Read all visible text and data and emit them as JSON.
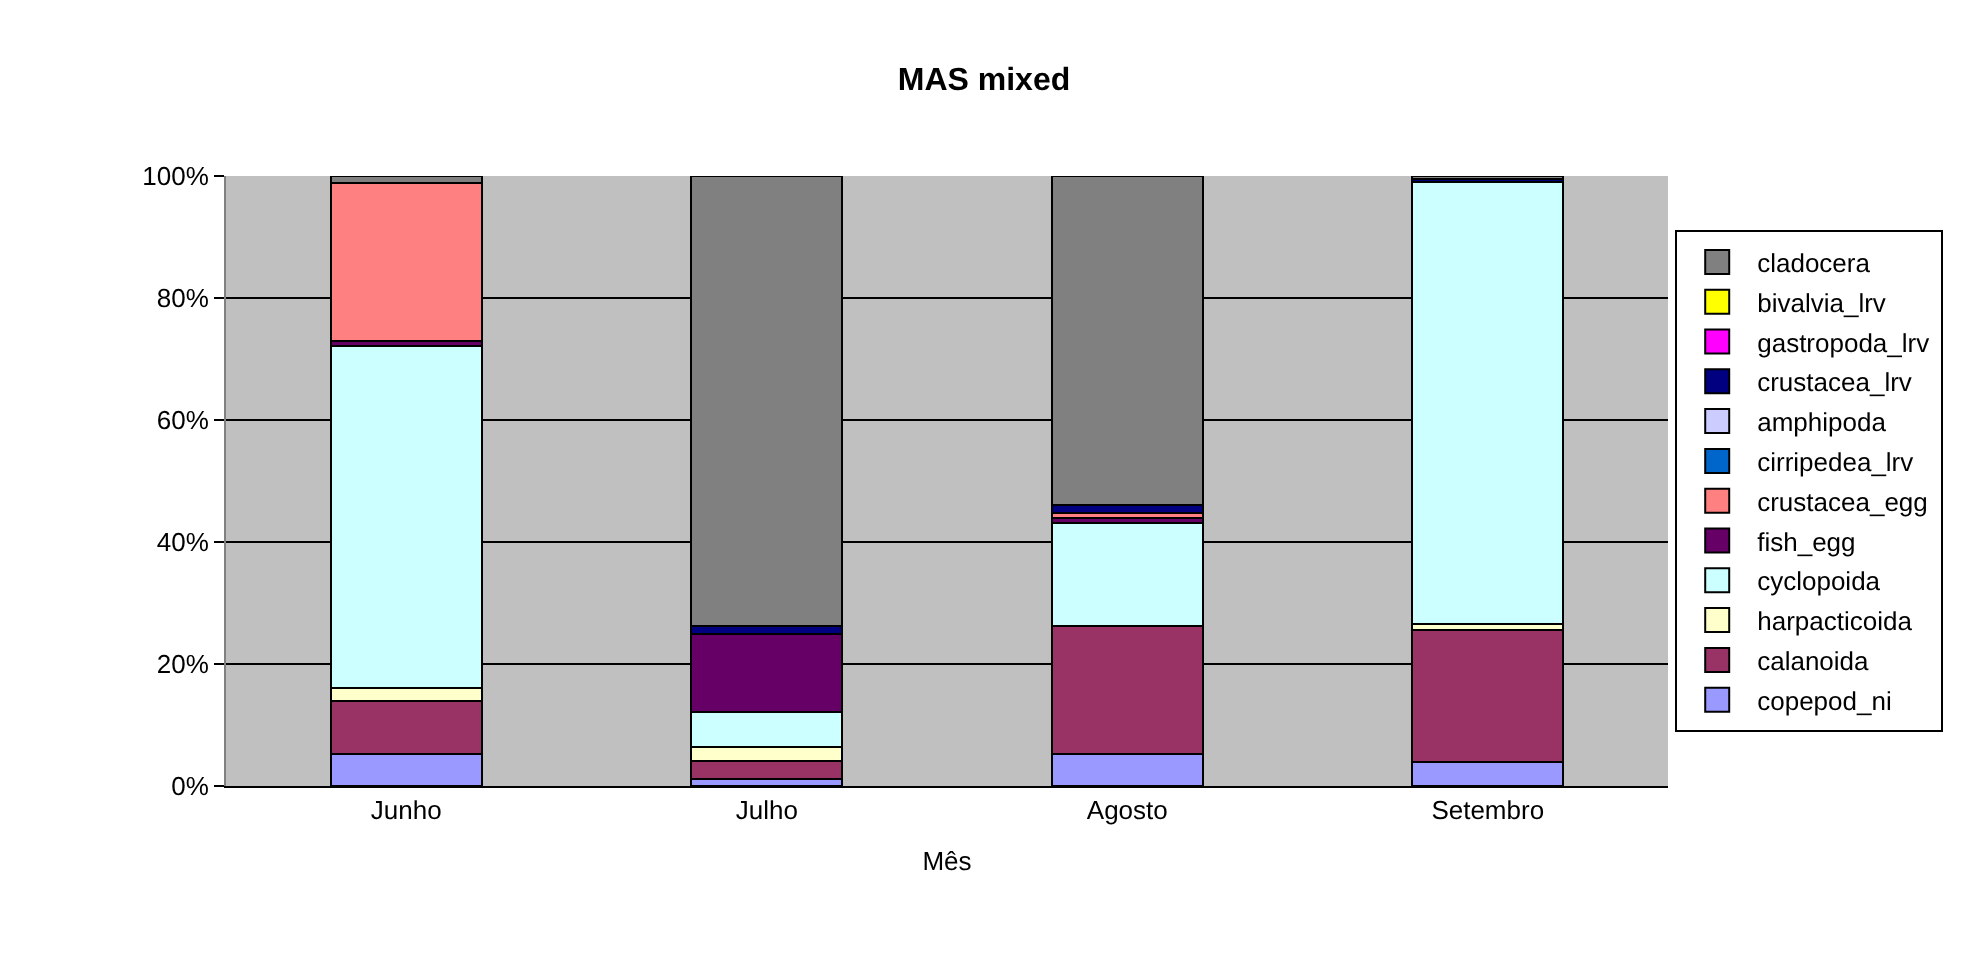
{
  "chart_data": {
    "type": "bar",
    "title": "MAS mixed",
    "xlabel": "Mês",
    "stacked": true,
    "grid": "y",
    "legend": "right",
    "categories": [
      "Junho",
      "Julho",
      "Agosto",
      "Setembro"
    ],
    "ylim": [
      0,
      100
    ],
    "yticks": [
      {
        "value": 0,
        "label": "0%"
      },
      {
        "value": 20,
        "label": "20%"
      },
      {
        "value": 40,
        "label": "40%"
      },
      {
        "value": 60,
        "label": "60%"
      },
      {
        "value": 80,
        "label": "80%"
      },
      {
        "value": 100,
        "label": "100%"
      }
    ],
    "series": [
      {
        "name": "copepod_ni",
        "color": "#9999ff",
        "values": [
          5.2,
          1.2,
          5.2,
          4
        ]
      },
      {
        "name": "calanoida",
        "color": "#993366",
        "values": [
          8.7,
          2.9,
          21,
          21.5
        ]
      },
      {
        "name": "harpacticoida",
        "color": "#ffffcc",
        "values": [
          2.1,
          2.3,
          0,
          1
        ]
      },
      {
        "name": "cyclopoida",
        "color": "#ccffff",
        "values": [
          56.2,
          5.8,
          16.9,
          72.5
        ]
      },
      {
        "name": "fish_egg",
        "color": "#660066",
        "values": [
          0.8,
          12.8,
          0.8,
          0
        ]
      },
      {
        "name": "crustacea_egg",
        "color": "#ff8080",
        "values": [
          25.8,
          0,
          0.9,
          0
        ]
      },
      {
        "name": "cirripedea_lrv",
        "color": "#0066cc",
        "values": [
          0,
          0,
          0,
          0
        ]
      },
      {
        "name": "amphipoda",
        "color": "#ccccff",
        "values": [
          0,
          0,
          0,
          0
        ]
      },
      {
        "name": "crustacea_lrv",
        "color": "#000080",
        "values": [
          0,
          1.2,
          1.2,
          0.5
        ]
      },
      {
        "name": "gastropoda_lrv",
        "color": "#ff00ff",
        "values": [
          0,
          0,
          0,
          0
        ]
      },
      {
        "name": "bivalvia_lrv",
        "color": "#ffff00",
        "values": [
          0,
          0,
          0,
          0
        ]
      },
      {
        "name": "cladocera",
        "color": "#808080",
        "values": [
          1.2,
          73.8,
          54,
          0.5
        ]
      }
    ]
  }
}
